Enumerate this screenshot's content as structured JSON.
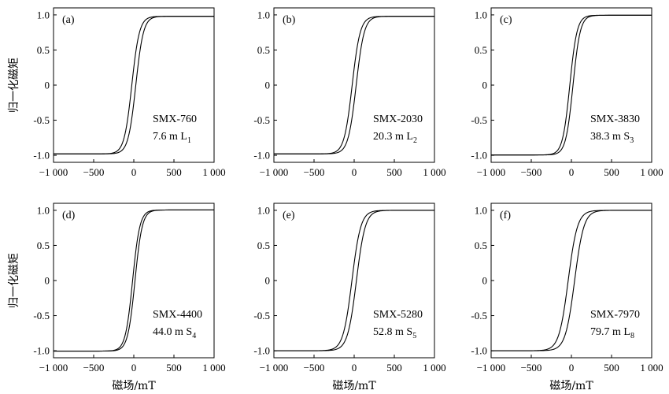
{
  "figure": {
    "ylabel": "归一化磁矩",
    "xlabel": "磁场/mT"
  },
  "chart_data": [
    {
      "type": "line",
      "panel": "(a)",
      "sample": "SMX-760",
      "depth": "7.6 m",
      "layer_letter": "L",
      "layer_sub": "1",
      "xlabel": "",
      "ylabel": "归一化磁矩",
      "xlim": [
        -1000,
        1000
      ],
      "ylim": [
        -1.1,
        1.1
      ],
      "x_ticks": [
        -1000,
        -500,
        0,
        500,
        1000
      ],
      "x_tick_labels": [
        "−1 000",
        "−500",
        "0",
        "500",
        "1 000"
      ],
      "y_ticks": [
        -1.0,
        -0.5,
        0,
        0.5,
        1.0
      ],
      "y_tick_labels": [
        "-1.0",
        "-0.5",
        "0",
        "0.5",
        "1.0"
      ],
      "saturation": 0.98,
      "coercivity_mT": 25,
      "width_mT": 95,
      "series": [
        {
          "values": [
            [
              -1000,
              -0.97
            ],
            [
              -500,
              -0.92
            ],
            [
              -200,
              -0.73
            ],
            [
              0,
              0.19
            ],
            [
              200,
              0.87
            ],
            [
              500,
              0.97
            ],
            [
              1000,
              0.98
            ]
          ]
        },
        {
          "values": [
            [
              1000,
              0.98
            ],
            [
              500,
              0.97
            ],
            [
              200,
              0.92
            ],
            [
              0,
              -0.1
            ],
            [
              -200,
              -0.84
            ],
            [
              -500,
              -0.96
            ],
            [
              -1000,
              -0.97
            ]
          ]
        }
      ]
    },
    {
      "type": "line",
      "panel": "(b)",
      "sample": "SMX-2030",
      "depth": "20.3 m",
      "layer_letter": "L",
      "layer_sub": "2",
      "xlabel": "",
      "ylabel": "",
      "xlim": [
        -1000,
        1000
      ],
      "ylim": [
        -1.1,
        1.1
      ],
      "x_ticks": [
        -1000,
        -500,
        0,
        500,
        1000
      ],
      "x_tick_labels": [
        "−1 000",
        "−500",
        "0",
        "500",
        "1 000"
      ],
      "y_ticks": [
        -1.0,
        -0.5,
        0,
        0.5,
        1.0
      ],
      "y_tick_labels": [
        "-1.0",
        "-0.5",
        "0",
        "0.5",
        "1.0"
      ],
      "saturation": 0.98,
      "coercivity_mT": 25,
      "width_mT": 100,
      "series": [
        {
          "values": [
            [
              -1000,
              -0.97
            ],
            [
              -500,
              -0.92
            ],
            [
              -200,
              -0.74
            ],
            [
              0,
              0.18
            ],
            [
              200,
              0.87
            ],
            [
              500,
              0.97
            ],
            [
              1000,
              0.98
            ]
          ]
        },
        {
          "values": [
            [
              1000,
              0.98
            ],
            [
              500,
              0.97
            ],
            [
              200,
              0.91
            ],
            [
              0,
              -0.12
            ],
            [
              -200,
              -0.84
            ],
            [
              -500,
              -0.96
            ],
            [
              -1000,
              -0.97
            ]
          ]
        }
      ]
    },
    {
      "type": "line",
      "panel": "(c)",
      "sample": "SMX-3830",
      "depth": "38.3 m",
      "layer_letter": "S",
      "layer_sub": "3",
      "xlabel": "",
      "ylabel": "",
      "xlim": [
        -1000,
        1000
      ],
      "ylim": [
        -1.1,
        1.1
      ],
      "x_ticks": [
        -1000,
        -500,
        0,
        500,
        1000
      ],
      "x_tick_labels": [
        "−1 000",
        "−500",
        "0",
        "500",
        "1 000"
      ],
      "y_ticks": [
        -1.0,
        -0.5,
        0,
        0.5,
        1.0
      ],
      "y_tick_labels": [
        "-1.0",
        "-0.5",
        "0",
        "0.5",
        "1.0"
      ],
      "saturation": 0.995,
      "coercivity_mT": 20,
      "width_mT": 90,
      "series": [
        {
          "values": [
            [
              -1000,
              -0.99
            ],
            [
              -500,
              -0.96
            ],
            [
              -200,
              -0.78
            ],
            [
              0,
              0.1
            ],
            [
              200,
              0.92
            ],
            [
              500,
              0.99
            ],
            [
              1000,
              1.0
            ]
          ]
        },
        {
          "values": [
            [
              1000,
              1.0
            ],
            [
              500,
              0.99
            ],
            [
              200,
              0.95
            ],
            [
              0,
              -0.05
            ],
            [
              -200,
              -0.88
            ],
            [
              -500,
              -0.98
            ],
            [
              -1000,
              -0.99
            ]
          ]
        }
      ]
    },
    {
      "type": "line",
      "panel": "(d)",
      "sample": "SMX-4400",
      "depth": "44.0 m",
      "layer_letter": "S",
      "layer_sub": "4",
      "xlabel": "磁场/mT",
      "ylabel": "归一化磁矩",
      "xlim": [
        -1000,
        1000
      ],
      "ylim": [
        -1.1,
        1.1
      ],
      "x_ticks": [
        -1000,
        -500,
        0,
        500,
        1000
      ],
      "x_tick_labels": [
        "−1 000",
        "−500",
        "0",
        "500",
        "1 000"
      ],
      "y_ticks": [
        -1.0,
        -0.5,
        0,
        0.5,
        1.0
      ],
      "y_tick_labels": [
        "-1.0",
        "-0.5",
        "0",
        "0.5",
        "1.0"
      ],
      "saturation": 1.005,
      "coercivity_mT": 15,
      "width_mT": 90,
      "series": [
        {
          "values": [
            [
              -1000,
              -1.0
            ],
            [
              -500,
              -0.97
            ],
            [
              -200,
              -0.8
            ],
            [
              0,
              0.07
            ],
            [
              200,
              0.93
            ],
            [
              500,
              1.0
            ],
            [
              1000,
              1.01
            ]
          ]
        },
        {
          "values": [
            [
              1000,
              1.01
            ],
            [
              500,
              1.0
            ],
            [
              200,
              0.96
            ],
            [
              0,
              -0.02
            ],
            [
              -200,
              -0.89
            ],
            [
              -500,
              -0.99
            ],
            [
              -1000,
              -1.0
            ]
          ]
        }
      ]
    },
    {
      "type": "line",
      "panel": "(e)",
      "sample": "SMX-5280",
      "depth": "52.8 m",
      "layer_letter": "S",
      "layer_sub": "5",
      "xlabel": "磁场/mT",
      "ylabel": "",
      "xlim": [
        -1000,
        1000
      ],
      "ylim": [
        -1.1,
        1.1
      ],
      "x_ticks": [
        -1000,
        -500,
        0,
        500,
        1000
      ],
      "x_tick_labels": [
        "−1 000",
        "−500",
        "0",
        "500",
        "1 000"
      ],
      "y_ticks": [
        -1.0,
        -0.5,
        0,
        0.5,
        1.0
      ],
      "y_tick_labels": [
        "-1.0",
        "-0.5",
        "0",
        "0.5",
        "1.0"
      ],
      "saturation": 1.0,
      "coercivity_mT": 28,
      "width_mT": 110,
      "series": [
        {
          "values": [
            [
              -1000,
              -0.99
            ],
            [
              -500,
              -0.94
            ],
            [
              -200,
              -0.7
            ],
            [
              0,
              0.22
            ],
            [
              200,
              0.85
            ],
            [
              500,
              0.98
            ],
            [
              1000,
              1.0
            ]
          ]
        },
        {
          "values": [
            [
              1000,
              1.0
            ],
            [
              500,
              0.98
            ],
            [
              200,
              0.91
            ],
            [
              0,
              -0.15
            ],
            [
              -200,
              -0.82
            ],
            [
              -500,
              -0.96
            ],
            [
              -1000,
              -0.99
            ]
          ]
        }
      ]
    },
    {
      "type": "line",
      "panel": "(f)",
      "sample": "SMX-7970",
      "depth": "79.7 m",
      "layer_letter": "L",
      "layer_sub": "8",
      "xlabel": "磁场/mT",
      "ylabel": "",
      "xlim": [
        -1000,
        1000
      ],
      "ylim": [
        -1.1,
        1.1
      ],
      "x_ticks": [
        -1000,
        -500,
        0,
        500,
        1000
      ],
      "x_tick_labels": [
        "−1 000",
        "−500",
        "0",
        "500",
        "1 000"
      ],
      "y_ticks": [
        -1.0,
        -0.5,
        0,
        0.5,
        1.0
      ],
      "y_tick_labels": [
        "-1.0",
        "-0.5",
        "0",
        "0.5",
        "1.0"
      ],
      "saturation": 1.0,
      "coercivity_mT": 40,
      "width_mT": 115,
      "series": [
        {
          "values": [
            [
              -1000,
              -0.98
            ],
            [
              -500,
              -0.93
            ],
            [
              -200,
              -0.66
            ],
            [
              0,
              0.3
            ],
            [
              200,
              0.83
            ],
            [
              500,
              0.97
            ],
            [
              1000,
              1.0
            ]
          ]
        },
        {
          "values": [
            [
              1000,
              1.0
            ],
            [
              500,
              0.97
            ],
            [
              200,
              0.9
            ],
            [
              0,
              -0.25
            ],
            [
              -200,
              -0.8
            ],
            [
              -500,
              -0.95
            ],
            [
              -1000,
              -0.98
            ]
          ]
        }
      ]
    }
  ]
}
